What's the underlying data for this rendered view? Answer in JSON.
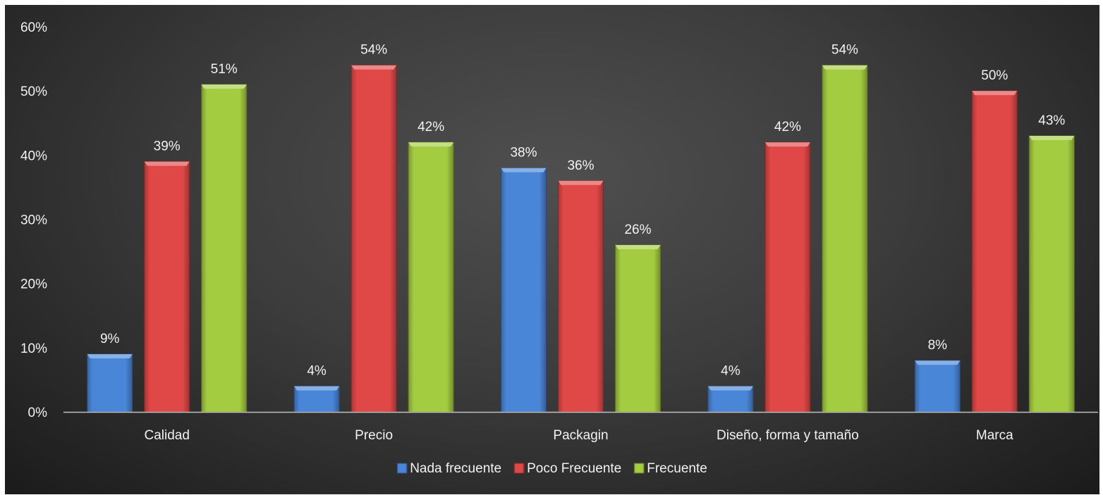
{
  "chart_data": {
    "type": "bar",
    "title": "",
    "xlabel": "",
    "ylabel": "",
    "categories": [
      "Calidad",
      "Precio",
      "Packagin",
      "Diseño, forma y tamaño",
      "Marca"
    ],
    "series": [
      {
        "name": "Nada frecuente",
        "color": "#4a86d8",
        "values": [
          9,
          4,
          38,
          4,
          8
        ],
        "labels": [
          "9%",
          "4%",
          "38%",
          "4%",
          "8%"
        ]
      },
      {
        "name": "Poco Frecuente",
        "color": "#e04848",
        "values": [
          39,
          54,
          36,
          42,
          50
        ],
        "labels": [
          "39%",
          "54%",
          "36%",
          "42%",
          "50%"
        ]
      },
      {
        "name": "Frecuente",
        "color": "#a3cc40",
        "values": [
          51,
          42,
          26,
          54,
          43
        ],
        "labels": [
          "51%",
          "42%",
          "26%",
          "54%",
          "43%"
        ]
      }
    ],
    "ylim": [
      0,
      60
    ],
    "yticks": [
      0,
      10,
      20,
      30,
      40,
      50,
      60
    ],
    "ytick_labels": [
      "0%",
      "10%",
      "20%",
      "30%",
      "40%",
      "50%",
      "60%"
    ],
    "grid": false,
    "legend_position": "bottom",
    "background": "#3a3a3a"
  }
}
